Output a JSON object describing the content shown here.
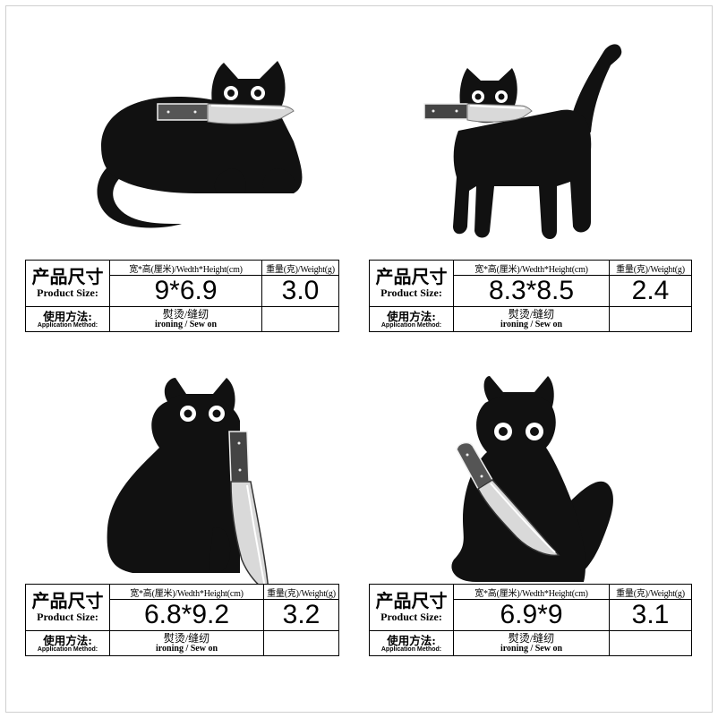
{
  "labels": {
    "size_cn": "产品尺寸",
    "size_en": "Product Size:",
    "dim_header": "宽*高(厘米)/Wedth*Height(cm)",
    "weight_header": "重量(克)/Weight(g)",
    "method_cn": "使用方法:",
    "method_en": "Application Method:",
    "method_value_cn": "熨烫/缝纫",
    "method_value_en": "ironing / Sew on"
  },
  "products": [
    {
      "dimensions": "9*6.9",
      "weight": "3.0",
      "pose": "lying cat with knife in mouth"
    },
    {
      "dimensions": "8.3*8.5",
      "weight": "2.4",
      "pose": "standing cat with knife in mouth"
    },
    {
      "dimensions": "6.8*9.2",
      "weight": "3.2",
      "pose": "sitting cat holding knife down"
    },
    {
      "dimensions": "6.9*9",
      "weight": "3.1",
      "pose": "sitting cat holding knife up"
    }
  ],
  "colors": {
    "patch": "#111111",
    "blade": "#d9d9d9",
    "handle": "#555555",
    "eyes": "#ffffff"
  }
}
